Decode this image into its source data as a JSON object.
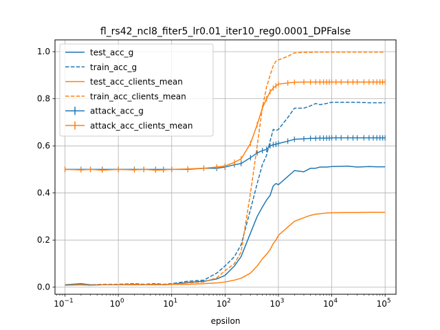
{
  "chart_data": {
    "type": "line",
    "title": "fl_rs42_ncl8_fiter5_lr0.01_iter10_reg0.0001_DPFalse",
    "xlabel": "epsilon",
    "ylabel": "",
    "xscale": "log",
    "xlim": [
      0.065,
      160000
    ],
    "ylim": [
      -0.03,
      1.05
    ],
    "x_ticks": [
      {
        "value": 0.1,
        "base": "10",
        "exp": "−1"
      },
      {
        "value": 1,
        "base": "10",
        "exp": "0"
      },
      {
        "value": 10,
        "base": "10",
        "exp": "1"
      },
      {
        "value": 100,
        "base": "10",
        "exp": "2"
      },
      {
        "value": 1000,
        "base": "10",
        "exp": "3"
      },
      {
        "value": 10000,
        "base": "10",
        "exp": "4"
      },
      {
        "value": 100000,
        "base": "10",
        "exp": "5"
      }
    ],
    "y_ticks": [
      "0.0",
      "0.2",
      "0.4",
      "0.6",
      "0.8",
      "1.0"
    ],
    "grid": true,
    "legend_position": "top-left",
    "colors": {
      "blue": "#1f77b4",
      "orange": "#ff7f0e"
    },
    "series": [
      {
        "name": "test_acc_g",
        "color": "#1f77b4",
        "style": "solid",
        "x": [
          0.1,
          0.2,
          0.3,
          0.5,
          1,
          2,
          3,
          5,
          7,
          10,
          20,
          40,
          70,
          100,
          150,
          200,
          300,
          400,
          500,
          600,
          700,
          800,
          900,
          1000,
          1500,
          2000,
          3000,
          4000,
          5000,
          6000,
          8000,
          10000,
          20000,
          30000,
          50000,
          70000,
          100000
        ],
        "y": [
          0.01,
          0.015,
          0.01,
          0.01,
          0.01,
          0.012,
          0.01,
          0.012,
          0.01,
          0.012,
          0.02,
          0.025,
          0.035,
          0.05,
          0.09,
          0.13,
          0.23,
          0.3,
          0.34,
          0.37,
          0.39,
          0.43,
          0.44,
          0.435,
          0.47,
          0.495,
          0.49,
          0.505,
          0.505,
          0.51,
          0.51,
          0.512,
          0.514,
          0.51,
          0.512,
          0.511,
          0.511
        ]
      },
      {
        "name": "train_acc_g",
        "color": "#1f77b4",
        "style": "dashed",
        "x": [
          0.1,
          0.2,
          0.3,
          0.5,
          1,
          2,
          3,
          5,
          7,
          10,
          20,
          40,
          70,
          100,
          150,
          200,
          300,
          400,
          500,
          600,
          700,
          800,
          900,
          1000,
          1500,
          2000,
          3000,
          4000,
          5000,
          6000,
          8000,
          10000,
          20000,
          30000,
          50000,
          70000,
          100000
        ],
        "y": [
          0.01,
          0.012,
          0.01,
          0.012,
          0.012,
          0.015,
          0.012,
          0.015,
          0.012,
          0.015,
          0.025,
          0.03,
          0.06,
          0.09,
          0.13,
          0.18,
          0.33,
          0.44,
          0.52,
          0.56,
          0.62,
          0.67,
          0.665,
          0.67,
          0.72,
          0.76,
          0.76,
          0.77,
          0.78,
          0.775,
          0.78,
          0.785,
          0.785,
          0.785,
          0.783,
          0.783,
          0.783
        ]
      },
      {
        "name": "test_acc_clients_mean",
        "color": "#ff7f0e",
        "style": "solid",
        "x": [
          0.1,
          0.2,
          0.3,
          0.5,
          1,
          2,
          3,
          5,
          7,
          10,
          20,
          40,
          70,
          100,
          150,
          200,
          300,
          400,
          500,
          600,
          700,
          800,
          900,
          1000,
          1500,
          2000,
          3000,
          4000,
          5000,
          6000,
          8000,
          10000,
          20000,
          30000,
          50000,
          70000,
          100000
        ],
        "y": [
          0.008,
          0.01,
          0.008,
          0.01,
          0.01,
          0.01,
          0.01,
          0.01,
          0.01,
          0.012,
          0.012,
          0.015,
          0.018,
          0.022,
          0.03,
          0.038,
          0.06,
          0.09,
          0.12,
          0.14,
          0.16,
          0.185,
          0.2,
          0.22,
          0.255,
          0.28,
          0.295,
          0.305,
          0.31,
          0.312,
          0.315,
          0.316,
          0.317,
          0.317,
          0.318,
          0.318,
          0.318
        ]
      },
      {
        "name": "train_acc_clients_mean",
        "color": "#ff7f0e",
        "style": "dashed",
        "x": [
          0.1,
          0.2,
          0.3,
          0.5,
          1,
          2,
          3,
          5,
          7,
          10,
          20,
          40,
          70,
          100,
          150,
          200,
          300,
          400,
          500,
          600,
          700,
          800,
          900,
          1000,
          1500,
          2000,
          3000,
          4000,
          5000,
          6000,
          8000,
          10000,
          20000,
          30000,
          50000,
          70000,
          100000
        ],
        "y": [
          0.008,
          0.01,
          0.008,
          0.01,
          0.01,
          0.012,
          0.01,
          0.012,
          0.01,
          0.012,
          0.018,
          0.022,
          0.04,
          0.07,
          0.1,
          0.15,
          0.4,
          0.6,
          0.76,
          0.85,
          0.9,
          0.94,
          0.96,
          0.965,
          0.98,
          0.995,
          0.997,
          0.997,
          0.998,
          0.998,
          0.998,
          0.998,
          0.998,
          0.998,
          0.998,
          0.998,
          0.998
        ]
      },
      {
        "name": "attack_acc_g",
        "color": "#1f77b4",
        "style": "solid-errorbar",
        "x": [
          0.1,
          0.2,
          0.3,
          0.5,
          1,
          2,
          3,
          5,
          7,
          10,
          20,
          40,
          70,
          100,
          150,
          200,
          300,
          400,
          500,
          600,
          700,
          800,
          900,
          1000,
          1500,
          2000,
          3000,
          4000,
          5000,
          6000,
          7000,
          8000,
          9000,
          10000,
          12000,
          15000,
          20000,
          25000,
          30000,
          40000,
          50000,
          60000,
          70000,
          80000,
          90000,
          100000
        ],
        "y": [
          0.5,
          0.5,
          0.5,
          0.5,
          0.5,
          0.5,
          0.5,
          0.5,
          0.5,
          0.5,
          0.5,
          0.505,
          0.505,
          0.51,
          0.52,
          0.525,
          0.55,
          0.57,
          0.58,
          0.585,
          0.6,
          0.605,
          0.607,
          0.61,
          0.62,
          0.628,
          0.63,
          0.632,
          0.632,
          0.633,
          0.633,
          0.633,
          0.633,
          0.634,
          0.634,
          0.634,
          0.634,
          0.634,
          0.634,
          0.634,
          0.634,
          0.634,
          0.634,
          0.634,
          0.634,
          0.634
        ]
      },
      {
        "name": "attack_acc_clients_mean",
        "color": "#ff7f0e",
        "style": "solid-errorbar",
        "x": [
          0.1,
          0.2,
          0.3,
          0.5,
          1,
          2,
          3,
          5,
          7,
          10,
          20,
          40,
          70,
          100,
          150,
          200,
          300,
          400,
          500,
          600,
          700,
          800,
          900,
          1000,
          1500,
          2000,
          3000,
          4000,
          5000,
          6000,
          7000,
          8000,
          9000,
          10000,
          12000,
          15000,
          20000,
          25000,
          30000,
          40000,
          50000,
          60000,
          70000,
          80000,
          90000,
          100000
        ],
        "y": [
          0.5,
          0.498,
          0.5,
          0.497,
          0.5,
          0.498,
          0.5,
          0.497,
          0.498,
          0.5,
          0.502,
          0.505,
          0.51,
          0.515,
          0.53,
          0.545,
          0.61,
          0.69,
          0.76,
          0.8,
          0.83,
          0.845,
          0.855,
          0.862,
          0.867,
          0.87,
          0.871,
          0.871,
          0.871,
          0.871,
          0.871,
          0.871,
          0.871,
          0.871,
          0.871,
          0.871,
          0.871,
          0.871,
          0.871,
          0.871,
          0.871,
          0.871,
          0.871,
          0.871,
          0.871,
          0.871
        ]
      }
    ]
  }
}
